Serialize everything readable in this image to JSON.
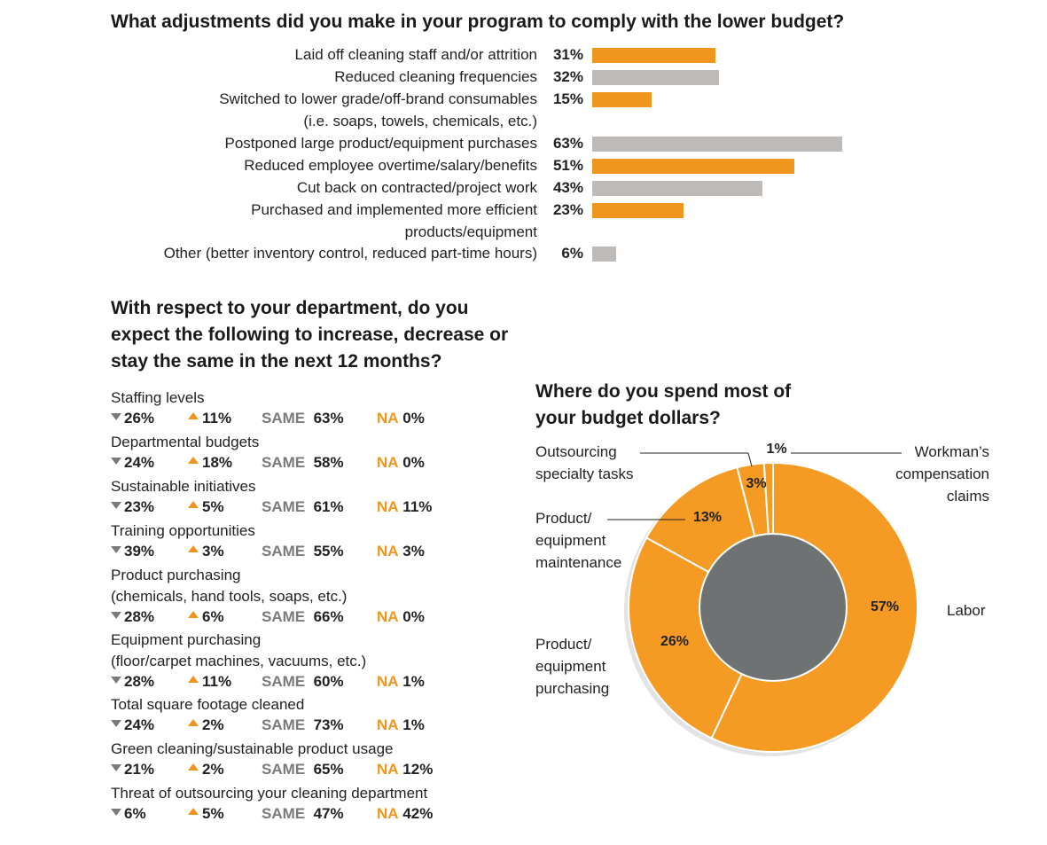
{
  "adjustments": {
    "title": "What adjustments did you make in your program to comply with the lower budget?",
    "colors": {
      "orange": "#f0951e",
      "gray": "#bdbab8"
    }
  },
  "outlook": {
    "title": "With respect to your department, do you expect the following to increase, decrease or stay the same in the next 12 months?",
    "same_word": "SAME",
    "na_word": "NA",
    "items": [
      {
        "label": "Staffing levels",
        "decrease": "26%",
        "increase": "11%",
        "same": "63%",
        "na": "0%"
      },
      {
        "label": "Departmental budgets",
        "decrease": "24%",
        "increase": "18%",
        "same": "58%",
        "na": "0%"
      },
      {
        "label": "Sustainable initiatives",
        "decrease": "23%",
        "increase": "5%",
        "same": "61%",
        "na": "11%"
      },
      {
        "label": "Training opportunities",
        "decrease": "39%",
        "increase": "3%",
        "same": "55%",
        "na": "3%"
      },
      {
        "label": "Product purchasing",
        "label2": "(chemicals, hand tools, soaps, etc.)",
        "decrease": "28%",
        "increase": "6%",
        "same": "66%",
        "na": "0%"
      },
      {
        "label": "Equipment purchasing",
        "label2": "(floor/carpet machines, vacuums, etc.)",
        "decrease": "28%",
        "increase": "11%",
        "same": "60%",
        "na": "1%"
      },
      {
        "label": "Total square footage cleaned",
        "decrease": "24%",
        "increase": "2%",
        "same": "73%",
        "na": "1%"
      },
      {
        "label": "Green cleaning/sustainable product usage",
        "decrease": "21%",
        "increase": "2%",
        "same": "65%",
        "na": "12%"
      },
      {
        "label": "Threat of outsourcing your cleaning department",
        "decrease": "6%",
        "increase": "5%",
        "same": "47%",
        "na": "42%"
      }
    ]
  },
  "budget": {
    "title": "Where do you spend most of your budget dollars?",
    "colors": {
      "orange": "#f59a22",
      "center": "#6f7273",
      "shadow": "#e3e3e3"
    }
  },
  "chart_data": [
    {
      "type": "bar",
      "title": "What adjustments did you make in your program to comply with the lower budget?",
      "orientation": "horizontal",
      "xlim": [
        0,
        100
      ],
      "categories": [
        {
          "label": "Laid off cleaning staff and/or attrition",
          "value": 31,
          "pct": "31%",
          "color": "orange"
        },
        {
          "label": "Reduced cleaning frequencies",
          "value": 32,
          "pct": "32%",
          "color": "gray"
        },
        {
          "label": "Switched to lower grade/off-brand consumables",
          "label2": "(i.e. soaps, towels, chemicals, etc.)",
          "value": 15,
          "pct": "15%",
          "color": "orange"
        },
        {
          "label": "Postponed large product/equipment purchases",
          "value": 63,
          "pct": "63%",
          "color": "gray"
        },
        {
          "label": "Reduced employee overtime/salary/benefits",
          "value": 51,
          "pct": "51%",
          "color": "orange"
        },
        {
          "label": "Cut back on contracted/project work",
          "value": 43,
          "pct": "43%",
          "color": "gray"
        },
        {
          "label": "Purchased and implemented more efficient",
          "label2": "products/equipment",
          "value": 23,
          "pct": "23%",
          "color": "orange"
        },
        {
          "label": "Other (better inventory control, reduced part-time hours)",
          "value": 6,
          "pct": "6%",
          "color": "gray"
        }
      ]
    },
    {
      "type": "pie",
      "title": "Where do you spend most of your budget dollars?",
      "slices": [
        {
          "label": "Labor",
          "value": 57,
          "pct": "57%"
        },
        {
          "label": "Product/ equipment purchasing",
          "value": 26,
          "pct": "26%"
        },
        {
          "label": "Product/ equipment maintenance",
          "value": 13,
          "pct": "13%"
        },
        {
          "label": "Outsourcing specialty tasks",
          "value": 3,
          "pct": "3%"
        },
        {
          "label": "Workman’s compensation claims",
          "value": 1,
          "pct": "1%"
        }
      ],
      "callouts": {
        "outsourcing": [
          "Outsourcing",
          "specialty tasks"
        ],
        "workman": [
          "Workman’s",
          "compensation",
          "claims"
        ],
        "maintenance": [
          "Product/",
          "equipment",
          "maintenance"
        ],
        "purchasing": [
          "Product/",
          "equipment",
          "purchasing"
        ],
        "labor": [
          "Labor"
        ]
      }
    }
  ]
}
